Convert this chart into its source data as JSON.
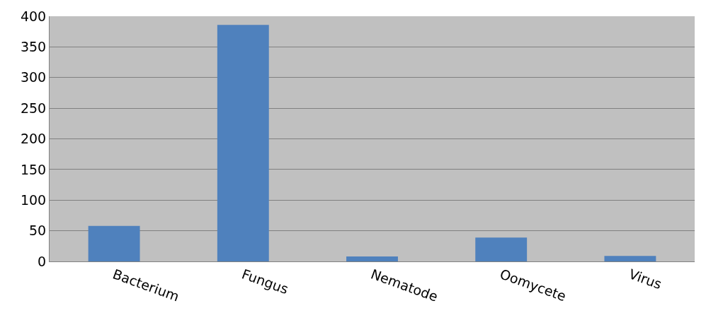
{
  "chart_data": {
    "type": "bar",
    "categories": [
      "Bacterium",
      "Fungus",
      "Nematode",
      "Oomycete",
      "Virus"
    ],
    "values": [
      58,
      386,
      8,
      39,
      9
    ],
    "color": "#4f81bd",
    "ylim": [
      0,
      400
    ],
    "yticks": [
      0,
      50,
      100,
      150,
      200,
      250,
      300,
      350,
      400
    ],
    "grid": "y"
  }
}
